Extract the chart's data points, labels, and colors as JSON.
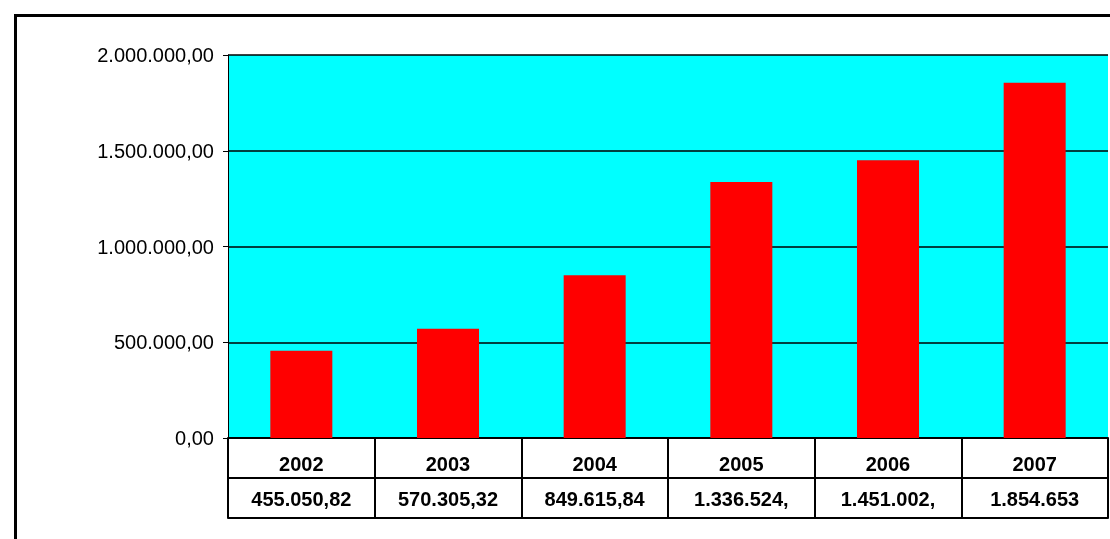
{
  "chart_data": {
    "type": "bar",
    "categories": [
      "2002",
      "2003",
      "2004",
      "2005",
      "2006",
      "2007"
    ],
    "values": [
      455050.82,
      570305.32,
      849615.84,
      1336524,
      1451002,
      1854653
    ],
    "value_labels": [
      "455.050,82",
      "570.305,32",
      "849.615,84",
      "1.336.524,",
      "1.451.002,",
      "1.854.653"
    ],
    "color": "#ff0000",
    "ylim": [
      0,
      2000000
    ],
    "yticks": [
      {
        "value": 0,
        "label": "0,00"
      },
      {
        "value": 500000,
        "label": "500.000,00"
      },
      {
        "value": 1000000,
        "label": "1.000.000,00"
      },
      {
        "value": 1500000,
        "label": "1.500.000,00"
      },
      {
        "value": 2000000,
        "label": "2.000.000,00"
      }
    ],
    "grid": "y"
  }
}
